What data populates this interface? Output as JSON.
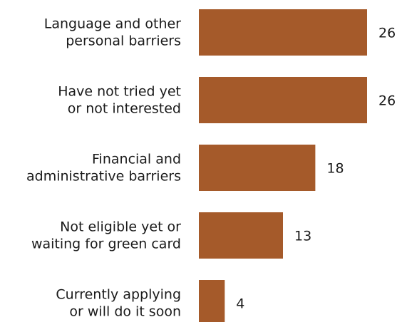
{
  "chart_data": {
    "type": "bar",
    "orientation": "horizontal",
    "categories": [
      [
        "Language and other",
        "personal barriers"
      ],
      [
        "Have not tried yet",
        "or not interested"
      ],
      [
        "Financial and",
        "administrative barriers"
      ],
      [
        "Not eligible yet or",
        "waiting for green card"
      ],
      [
        "Currently applying",
        "or will do it soon"
      ]
    ],
    "values": [
      26,
      26,
      18,
      13,
      4
    ],
    "value_labels": [
      "26",
      "26",
      "18",
      "13",
      "4"
    ],
    "title": "",
    "xlabel": "",
    "ylabel": "",
    "xlim": [
      0,
      26
    ],
    "grid": false,
    "legend": "none",
    "colors": {
      "bar": "#a55a2a",
      "text": "#1a1a1a"
    }
  }
}
